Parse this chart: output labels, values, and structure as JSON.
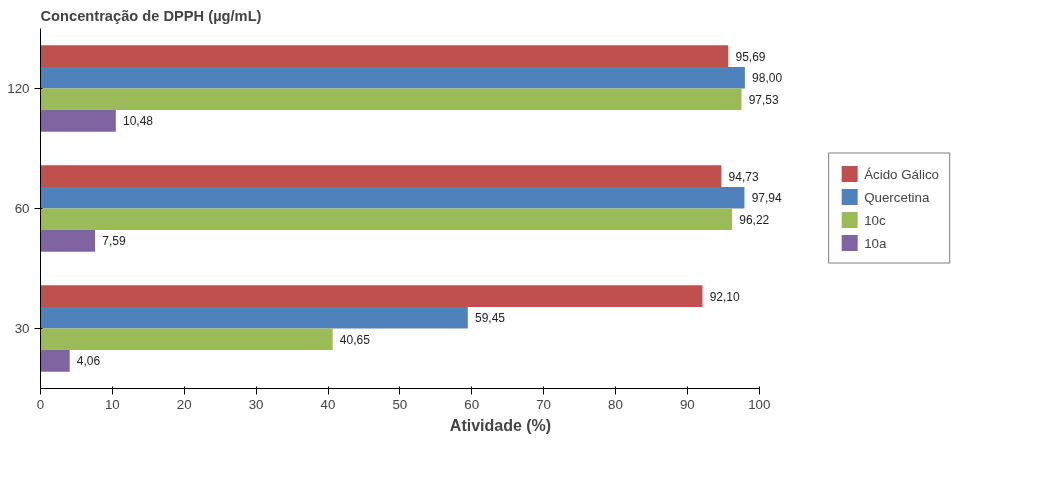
{
  "chart_data": {
    "type": "bar",
    "orientation": "horizontal",
    "ylabel": "Concentração de DPPH (µg/mL)",
    "xlabel": "Atividade (%)",
    "categories": [
      "120",
      "60",
      "30"
    ],
    "series": [
      {
        "name": "Ácido Gálico",
        "color": "#c0504d",
        "values": [
          95.69,
          94.73,
          92.1
        ],
        "value_labels": [
          "95,69",
          "94,73",
          "92,10"
        ]
      },
      {
        "name": "Quercetina",
        "color": "#4f81bd",
        "values": [
          98.0,
          97.94,
          59.45
        ],
        "value_labels": [
          "98,00",
          "97,94",
          "59,45"
        ]
      },
      {
        "name": "10c",
        "color": "#9bbb59",
        "values": [
          97.53,
          96.22,
          40.65
        ],
        "value_labels": [
          "97,53",
          "96,22",
          "40,65"
        ]
      },
      {
        "name": "10a",
        "color": "#8064a2",
        "values": [
          10.48,
          7.59,
          4.06
        ],
        "value_labels": [
          "10,48",
          "7,59",
          "4,06"
        ]
      }
    ],
    "xlim": [
      0,
      100
    ],
    "xticks": [
      0,
      10,
      20,
      30,
      40,
      50,
      60,
      70,
      80,
      90,
      100
    ],
    "grid": false,
    "legend": "right"
  }
}
